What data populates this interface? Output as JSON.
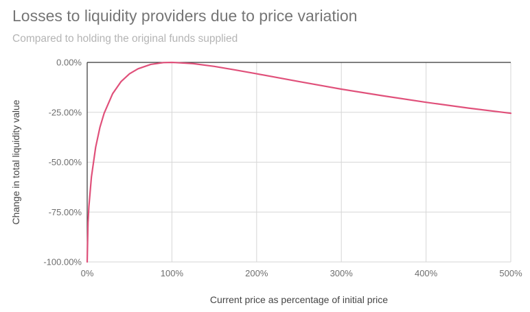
{
  "chart_data": {
    "type": "line",
    "title": "Losses to liquidity providers due to price variation",
    "subtitle": "Compared to holding the original funds supplied",
    "xlabel": "Current price as percentage of initial price",
    "ylabel": "Change in total liquidity value",
    "xlim": [
      0,
      500
    ],
    "ylim": [
      -100,
      0
    ],
    "x_ticks": [
      0,
      100,
      200,
      300,
      400,
      500
    ],
    "x_tick_labels": [
      "0%",
      "100%",
      "200%",
      "300%",
      "400%",
      "500%"
    ],
    "y_ticks": [
      0,
      -25,
      -50,
      -75,
      -100
    ],
    "y_tick_labels": [
      "0.00%",
      "-25.00%",
      "-50.00%",
      "-75.00%",
      "-100.00%"
    ],
    "grid": true,
    "series": [
      {
        "color": "#e0507a",
        "x": [
          0,
          1,
          2,
          5,
          10,
          15,
          20,
          30,
          40,
          50,
          60,
          75,
          90,
          100,
          125,
          150,
          175,
          200,
          250,
          300,
          350,
          400,
          450,
          500
        ],
        "y": [
          -100,
          -80.2,
          -72.3,
          -57.4,
          -42.5,
          -32.6,
          -25.5,
          -15.7,
          -9.6,
          -5.7,
          -3.2,
          -1.0,
          -0.1,
          0,
          -0.6,
          -2.0,
          -3.8,
          -5.7,
          -9.6,
          -13.4,
          -16.8,
          -20.0,
          -22.9,
          -25.5
        ]
      }
    ]
  }
}
